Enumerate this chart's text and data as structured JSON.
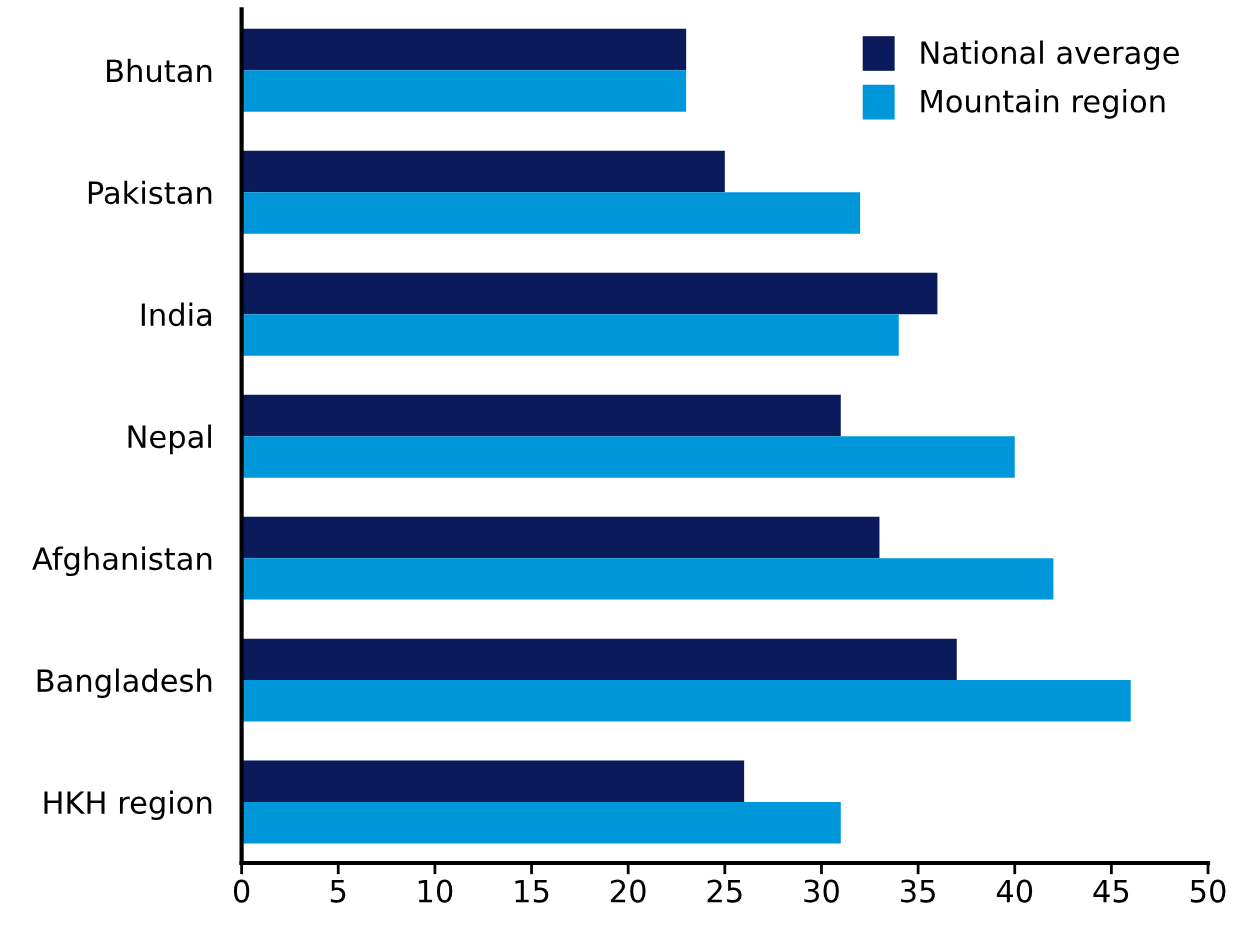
{
  "chart_data": {
    "type": "bar",
    "orientation": "horizontal",
    "categories": [
      "Bhutan",
      "Pakistan",
      "India",
      "Nepal",
      "Afghanistan",
      "Bangladesh",
      "HKH region"
    ],
    "series": [
      {
        "name": "National average",
        "color": "#0b1a5a",
        "values": [
          23,
          25,
          36,
          31,
          33,
          37,
          26
        ]
      },
      {
        "name": "Mountain region",
        "color": "#0096da",
        "values": [
          23,
          32,
          34,
          40,
          42,
          46,
          31
        ]
      }
    ],
    "xlim": [
      0,
      50
    ],
    "xticks": [
      0,
      5,
      10,
      15,
      20,
      25,
      30,
      35,
      40,
      45,
      50
    ],
    "grid": false,
    "legend": "top right"
  }
}
